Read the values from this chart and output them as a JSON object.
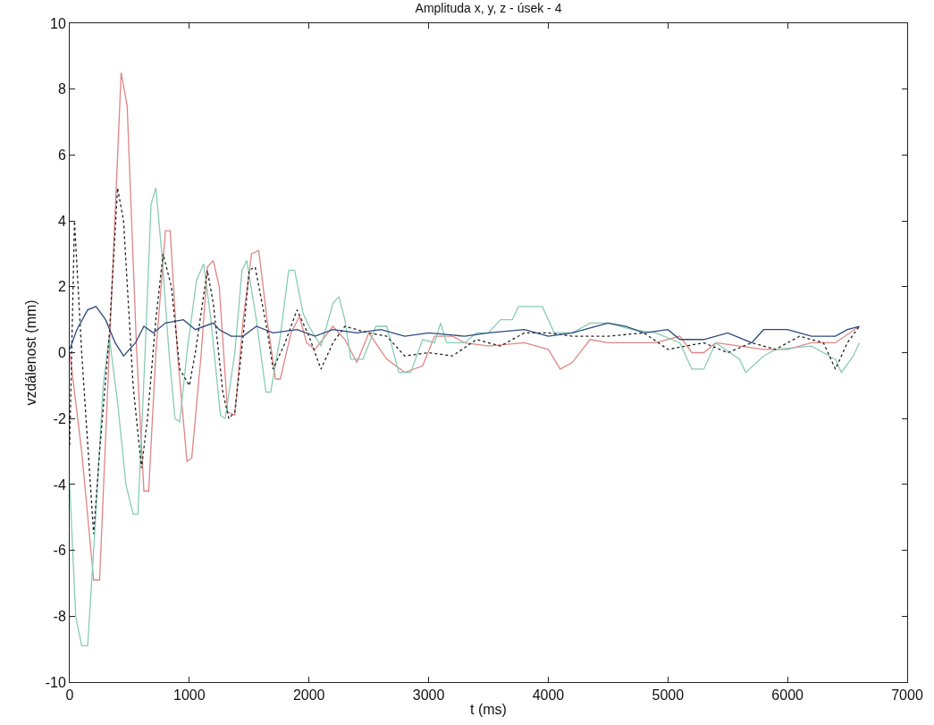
{
  "chart_data": {
    "type": "line",
    "title": "Amplituda x, y, z - úsek - 4",
    "xlabel": "t (ms)",
    "ylabel": "vzdálenost (mm)",
    "xlim": [
      0,
      7000
    ],
    "xticks": [
      0,
      1000,
      2000,
      3000,
      4000,
      5000,
      6000,
      7000
    ],
    "ylim": [
      -10,
      10
    ],
    "yticks": [
      -10,
      -8,
      -6,
      -4,
      -2,
      0,
      2,
      4,
      6,
      8,
      10
    ],
    "series": [
      {
        "color": "#e08585",
        "line_style": "solid",
        "x": [
          0,
          100,
          200,
          250,
          330,
          430,
          480,
          560,
          620,
          660,
          720,
          800,
          840,
          900,
          980,
          1020,
          1100,
          1150,
          1200,
          1250,
          1320,
          1380,
          1450,
          1520,
          1580,
          1650,
          1720,
          1760,
          1850,
          1920,
          1980,
          2050,
          2200,
          2300,
          2400,
          2500,
          2650,
          2800,
          2950,
          3050,
          3200,
          3300,
          3500,
          3800,
          4000,
          4100,
          4200,
          4350,
          4500,
          4700,
          4900,
          5100,
          5200,
          5300,
          5400,
          5600,
          5800,
          6000,
          6200,
          6400,
          6600
        ],
        "values": [
          0,
          -3,
          -6.9,
          -6.9,
          0,
          8.5,
          7.5,
          0,
          -4.2,
          -4.2,
          0,
          3.7,
          3.7,
          0,
          -3.3,
          -3.2,
          0,
          2.6,
          2.8,
          2.0,
          -1.8,
          -1.9,
          1.0,
          3.0,
          3.1,
          1.0,
          -0.8,
          -0.8,
          0.6,
          1.1,
          0.3,
          0.1,
          0.8,
          0.4,
          -0.3,
          0.6,
          -0.2,
          -0.6,
          -0.4,
          0.5,
          0.5,
          0.3,
          0.2,
          0.3,
          0.1,
          -0.5,
          -0.3,
          0.4,
          0.3,
          0.3,
          0.3,
          0.5,
          0.0,
          0.0,
          0.3,
          0.2,
          0.1,
          0.1,
          0.3,
          0.3,
          0.8
        ]
      },
      {
        "color": "#88ccb4",
        "line_style": "solid",
        "x": [
          0,
          50,
          100,
          150,
          200,
          280,
          330,
          400,
          470,
          530,
          570,
          630,
          680,
          720,
          770,
          830,
          880,
          920,
          980,
          1060,
          1120,
          1180,
          1260,
          1300,
          1380,
          1440,
          1480,
          1560,
          1640,
          1680,
          1760,
          1830,
          1880,
          1950,
          2000,
          2100,
          2200,
          2250,
          2300,
          2350,
          2450,
          2560,
          2650,
          2750,
          2850,
          2950,
          3050,
          3100,
          3150,
          3300,
          3400,
          3500,
          3600,
          3700,
          3750,
          3950,
          4050,
          4200,
          4350,
          4500,
          4700,
          4900,
          5100,
          5200,
          5300,
          5400,
          5600,
          5650,
          5800,
          5900,
          6200,
          6400,
          6450,
          6550,
          6600
        ],
        "values": [
          -4,
          -8.0,
          -8.9,
          -8.9,
          -6,
          -1,
          0.5,
          -1.5,
          -4,
          -4.9,
          -4.9,
          0,
          4.5,
          5.0,
          3,
          0,
          -2,
          -2.1,
          0,
          2.2,
          2.7,
          1.0,
          -1.9,
          -2,
          0,
          2.5,
          2.8,
          1.0,
          -1.2,
          -1.2,
          0.5,
          2.5,
          2.5,
          1.2,
          0.8,
          0.2,
          1.5,
          1.7,
          1.0,
          -0.2,
          -0.2,
          0.8,
          0.8,
          -0.6,
          -0.6,
          0.4,
          0.3,
          0.9,
          0.3,
          0.3,
          0.6,
          0.6,
          1.0,
          1.0,
          1.4,
          1.4,
          0.6,
          0.6,
          0.9,
          0.9,
          0.7,
          0.6,
          0.3,
          -0.5,
          -0.5,
          0.3,
          -0.2,
          -0.6,
          -0.1,
          0.1,
          0.2,
          -0.2,
          -0.6,
          -0.1,
          0.3
        ]
      },
      {
        "color": "#202020",
        "line_style": "dotted",
        "x": [
          0,
          40,
          100,
          200,
          250,
          330,
          400,
          450,
          530,
          600,
          650,
          720,
          780,
          850,
          920,
          1000,
          1050,
          1150,
          1200,
          1280,
          1330,
          1380,
          1450,
          1500,
          1550,
          1650,
          1700,
          1800,
          1900,
          2000,
          2100,
          2200,
          2300,
          2500,
          2650,
          2800,
          3000,
          3200,
          3400,
          3600,
          3800,
          4000,
          4200,
          4500,
          4800,
          5000,
          5300,
          5500,
          5700,
          5900,
          6100,
          6300,
          6400,
          6500,
          6600
        ],
        "values": [
          -2.8,
          4.0,
          0,
          -5.5,
          -3,
          0.5,
          5,
          4,
          -1,
          -3.5,
          -2,
          1,
          3,
          2,
          -0.5,
          -1.0,
          0,
          2.5,
          1.5,
          -1.2,
          -2.0,
          -1.8,
          0.5,
          2.5,
          2.6,
          0.7,
          -0.5,
          0.3,
          1.3,
          0.5,
          -0.5,
          0.3,
          0.8,
          0.6,
          0.5,
          -0.1,
          0.0,
          -0.1,
          0.4,
          0.2,
          0.6,
          0.6,
          0.5,
          0.5,
          0.6,
          0.1,
          0.3,
          0.0,
          0.3,
          0.1,
          0.5,
          0.3,
          -0.5,
          0.3,
          0.8
        ]
      },
      {
        "color": "#2c4a7c",
        "line_style": "solid",
        "x": [
          0,
          60,
          150,
          220,
          300,
          380,
          450,
          550,
          620,
          700,
          800,
          950,
          1050,
          1200,
          1250,
          1350,
          1450,
          1560,
          1700,
          1900,
          2050,
          2200,
          2400,
          2600,
          2800,
          3000,
          3300,
          3500,
          3800,
          4000,
          4200,
          4500,
          4650,
          4800,
          5000,
          5100,
          5300,
          5500,
          5700,
          5800,
          6000,
          6200,
          6400,
          6500,
          6600
        ],
        "values": [
          0.1,
          0.7,
          1.3,
          1.4,
          1.0,
          0.3,
          -0.1,
          0.3,
          0.8,
          0.6,
          0.9,
          1.0,
          0.7,
          0.9,
          0.7,
          0.5,
          0.5,
          0.8,
          0.6,
          0.7,
          0.5,
          0.7,
          0.6,
          0.7,
          0.5,
          0.6,
          0.5,
          0.6,
          0.7,
          0.5,
          0.6,
          0.9,
          0.8,
          0.6,
          0.7,
          0.4,
          0.4,
          0.6,
          0.3,
          0.7,
          0.7,
          0.5,
          0.5,
          0.7,
          0.8
        ]
      }
    ]
  }
}
